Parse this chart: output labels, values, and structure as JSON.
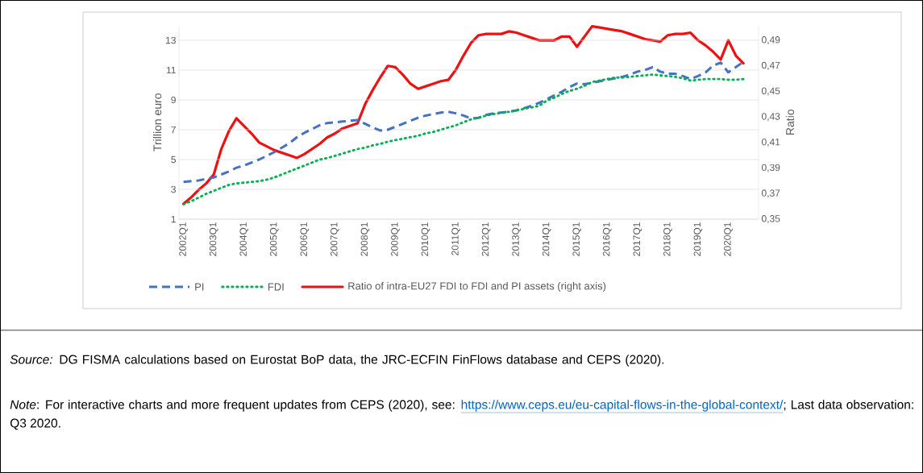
{
  "chart_data": {
    "type": "line",
    "categories": [
      "2002Q1",
      null,
      null,
      null,
      "2003Q1",
      null,
      null,
      null,
      "2004Q1",
      null,
      null,
      null,
      "2005Q1",
      null,
      null,
      null,
      "2006Q1",
      null,
      null,
      null,
      "2007Q1",
      null,
      null,
      null,
      "2008Q1",
      null,
      null,
      null,
      "2009Q1",
      null,
      null,
      null,
      "2010Q1",
      null,
      null,
      null,
      "2011Q1",
      null,
      null,
      null,
      "2012Q1",
      null,
      null,
      null,
      "2013Q1",
      null,
      null,
      null,
      "2014Q1",
      null,
      null,
      null,
      "2015Q1",
      null,
      null,
      null,
      "2016Q1",
      null,
      null,
      null,
      "2017Q1",
      null,
      null,
      null,
      "2018Q1",
      null,
      null,
      null,
      "2019Q1",
      null,
      null,
      null,
      "2020Q1",
      null,
      null
    ],
    "ylabel": "Trillion euro",
    "y2label": "Ratio",
    "ylim": [
      1,
      14
    ],
    "yticks": [
      1,
      3,
      5,
      7,
      9,
      11,
      13
    ],
    "y2lim": [
      0.35,
      0.5017
    ],
    "y2ticks": [
      {
        "value": 0.35,
        "label": "0,35"
      },
      {
        "value": 0.37,
        "label": "0,37"
      },
      {
        "value": 0.39,
        "label": "0,39"
      },
      {
        "value": 0.41,
        "label": "0,41"
      },
      {
        "value": 0.43,
        "label": "0,43"
      },
      {
        "value": 0.45,
        "label": "0,45"
      },
      {
        "value": 0.47,
        "label": "0,47"
      },
      {
        "value": 0.49,
        "label": "0,49"
      }
    ],
    "grid": "y",
    "legend": "bottom",
    "series": [
      {
        "name": "PI",
        "color": "#4472c4",
        "line_style": "dashed",
        "values": [
          3.5,
          3.55,
          3.6,
          3.7,
          3.8,
          4.0,
          4.2,
          4.45,
          4.6,
          4.8,
          5.0,
          5.25,
          5.5,
          5.8,
          6.1,
          6.5,
          6.8,
          7.05,
          7.3,
          7.45,
          7.5,
          7.55,
          7.6,
          7.65,
          7.4,
          7.15,
          6.95,
          7.0,
          7.2,
          7.4,
          7.6,
          7.8,
          7.95,
          8.05,
          8.15,
          8.2,
          8.1,
          7.95,
          7.75,
          7.8,
          8.0,
          8.1,
          8.15,
          8.2,
          8.3,
          8.45,
          8.6,
          8.8,
          9.05,
          9.3,
          9.55,
          9.85,
          10.1,
          10.05,
          10.15,
          10.25,
          10.35,
          10.45,
          10.55,
          10.7,
          10.9,
          11.0,
          11.2,
          10.9,
          10.75,
          10.75,
          10.6,
          10.4,
          10.6,
          10.85,
          11.3,
          11.5,
          10.85,
          11.2,
          11.55
        ]
      },
      {
        "name": "FDI",
        "color": "#00b050",
        "line_style": "dotted",
        "values": [
          2.0,
          2.2,
          2.45,
          2.7,
          2.9,
          3.1,
          3.3,
          3.4,
          3.45,
          3.5,
          3.55,
          3.65,
          3.8,
          4.0,
          4.2,
          4.4,
          4.6,
          4.8,
          5.0,
          5.1,
          5.25,
          5.4,
          5.55,
          5.7,
          5.8,
          5.95,
          6.05,
          6.2,
          6.3,
          6.4,
          6.5,
          6.6,
          6.75,
          6.85,
          7.0,
          7.15,
          7.3,
          7.5,
          7.7,
          7.8,
          7.95,
          8.05,
          8.15,
          8.2,
          8.3,
          8.4,
          8.5,
          8.6,
          8.95,
          9.15,
          9.4,
          9.6,
          9.75,
          9.95,
          10.2,
          10.3,
          10.4,
          10.5,
          10.5,
          10.55,
          10.6,
          10.65,
          10.7,
          10.65,
          10.6,
          10.55,
          10.45,
          10.3,
          10.35,
          10.4,
          10.4,
          10.4,
          10.35,
          10.35,
          10.4
        ]
      },
      {
        "name": "Ratio of intra-EU27 FDI to FDI and PI assets (right axis)",
        "color": "#ee1111",
        "line_style": "solid",
        "axis": "y2",
        "values": [
          0.362,
          0.367,
          0.373,
          0.378,
          0.385,
          0.405,
          0.419,
          0.429,
          0.423,
          0.417,
          0.41,
          0.407,
          0.404,
          0.402,
          0.4,
          0.398,
          0.401,
          0.405,
          0.409,
          0.414,
          0.417,
          0.421,
          0.423,
          0.425,
          0.44,
          0.451,
          0.461,
          0.47,
          0.469,
          0.463,
          0.456,
          0.452,
          0.454,
          0.456,
          0.458,
          0.459,
          0.467,
          0.478,
          0.488,
          0.494,
          0.495,
          0.495,
          0.495,
          0.497,
          0.496,
          0.494,
          0.492,
          0.49,
          0.49,
          0.49,
          0.493,
          0.493,
          0.485,
          0.493,
          0.501,
          0.5,
          0.499,
          0.498,
          0.497,
          0.495,
          0.493,
          0.491,
          0.49,
          0.489,
          0.494,
          0.495,
          0.495,
          0.496,
          0.49,
          0.486,
          0.481,
          0.475,
          0.49,
          0.478,
          0.472
        ]
      }
    ],
    "annotations": [
      "*Source:* DG FISMA calculations based on Eurostat BoP data, the JRC-ECFIN FinFlows database and CEPS (2020).",
      "*Note*: For interactive charts and more frequent updates from CEPS (2020), see:",
      "https://www.ceps.eu/eu-capital-flows-in-the-global-context/",
      "; Last data observation: Q3 2020."
    ]
  }
}
